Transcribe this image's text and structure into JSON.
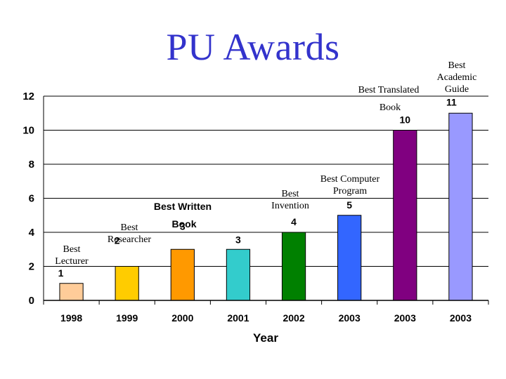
{
  "page_title": "PU Awards",
  "chart_data": {
    "type": "bar",
    "title": "",
    "xlabel": "Year",
    "ylabel": "",
    "ylim": [
      0,
      12
    ],
    "y_ticks": [
      0,
      2,
      4,
      6,
      8,
      10,
      12
    ],
    "grid": true,
    "categories": [
      "1998",
      "1999",
      "2000",
      "2001",
      "2002",
      "2003",
      "2003",
      "2003"
    ],
    "values": [
      1,
      2,
      3,
      3,
      4,
      5,
      10,
      11
    ],
    "colors": [
      "#ffcc99",
      "#ffcc00",
      "#ff9900",
      "#33cccc",
      "#008000",
      "#3366ff",
      "#800080",
      "#9999ff"
    ],
    "annotations": [
      {
        "bar": 0,
        "lines": [
          "Best",
          "Lecturer"
        ],
        "style": "serif"
      },
      {
        "bar": 1,
        "lines": [
          "Best",
          "Researcher"
        ],
        "style": "serif"
      },
      {
        "bar": 2,
        "lines": [
          "Best Written",
          "Book"
        ],
        "style": "sans"
      },
      {
        "bar": 4,
        "lines": [
          "Best",
          "Invention"
        ],
        "style": "serif"
      },
      {
        "bar": 5,
        "lines": [
          "Best Computer",
          "Program"
        ],
        "style": "serif"
      },
      {
        "bar": 6,
        "lines": [
          "Best Translated",
          "Book"
        ],
        "style": "serif"
      },
      {
        "bar": 7,
        "lines": [
          "Best",
          "Academic",
          "Guide"
        ],
        "style": "serif"
      }
    ]
  }
}
